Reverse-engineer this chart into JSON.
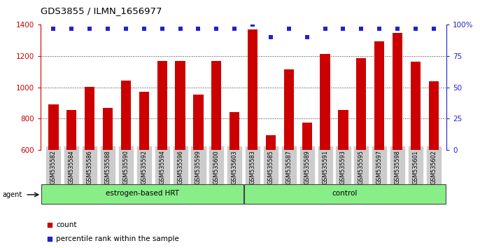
{
  "title": "GDS3855 / ILMN_1656977",
  "samples": [
    "GSM535582",
    "GSM535584",
    "GSM535586",
    "GSM535588",
    "GSM535590",
    "GSM535592",
    "GSM535594",
    "GSM535596",
    "GSM535599",
    "GSM535600",
    "GSM535603",
    "GSM535583",
    "GSM535585",
    "GSM535587",
    "GSM535589",
    "GSM535591",
    "GSM535593",
    "GSM535595",
    "GSM535597",
    "GSM535598",
    "GSM535601",
    "GSM535602"
  ],
  "counts": [
    893,
    855,
    1003,
    870,
    1045,
    970,
    1170,
    1170,
    955,
    1170,
    843,
    1370,
    693,
    1115,
    775,
    1215,
    855,
    1185,
    1295,
    1350,
    1165,
    1038
  ],
  "percentile": [
    97,
    97,
    97,
    97,
    97,
    97,
    97,
    97,
    97,
    97,
    97,
    100,
    90,
    97,
    90,
    97,
    97,
    97,
    97,
    97,
    97,
    97
  ],
  "group1_label": "estrogen-based HRT",
  "group1_count": 11,
  "group2_label": "control",
  "group2_count": 11,
  "agent_label": "agent",
  "ylim_left": [
    600,
    1400
  ],
  "ylim_right": [
    0,
    100
  ],
  "yticks_left": [
    600,
    800,
    1000,
    1200,
    1400
  ],
  "yticks_right": [
    0,
    25,
    50,
    75,
    100
  ],
  "bar_color": "#cc0000",
  "dot_color": "#2222cc",
  "grid_color": "#333333",
  "bg_color": "#ffffff",
  "tick_bg": "#cccccc",
  "group_bg": "#88ee88",
  "legend_count_label": "count",
  "legend_pct_label": "percentile rank within the sample",
  "bar_bottom": 600
}
